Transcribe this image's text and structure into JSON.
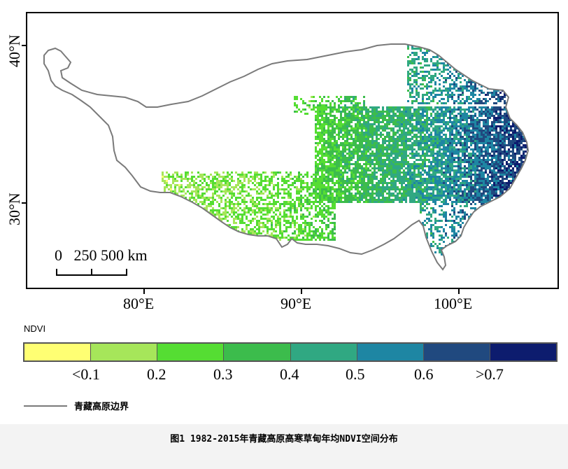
{
  "map": {
    "lat_labels": [
      "40°N",
      "30°N"
    ],
    "lon_labels": [
      "80°E",
      "90°E",
      "100°E"
    ],
    "boundary_color": "#7a7a7a",
    "scale_bar": {
      "text": "0   250 500 km",
      "ticks_km": [
        0,
        250,
        500
      ]
    }
  },
  "legend": {
    "title": "NDVI",
    "colors": [
      "#ffff73",
      "#a6e65a",
      "#55dd33",
      "#3cbc4c",
      "#30a882",
      "#1e86a3",
      "#20497f",
      "#0d1c6e"
    ],
    "labels": [
      "<0.1",
      "0.2",
      "0.3",
      "0.4",
      "0.5",
      "0.6",
      ">0.7"
    ],
    "boundary_label": "青藏高原边界"
  },
  "caption": "图1 1982-2015年青藏高原高寒草甸年均NDVI空间分布"
}
